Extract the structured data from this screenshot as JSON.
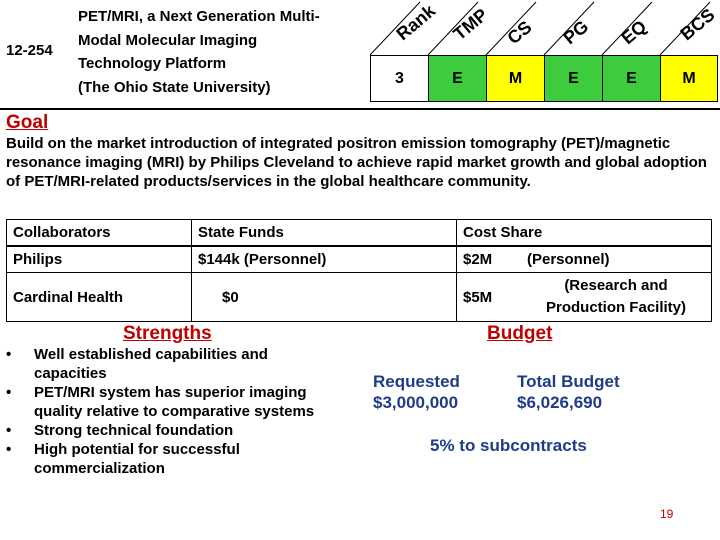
{
  "header": {
    "id": "12-254",
    "title_lines": [
      "PET/MRI, a Next Generation Multi-",
      "Modal Molecular Imaging",
      "Technology Platform",
      "(The Ohio State University)"
    ],
    "columns": [
      "Rank",
      "TMP",
      "CS",
      "PG",
      "EQ",
      "BCS"
    ],
    "ratings": [
      "3",
      "E",
      "M",
      "E",
      "E",
      "M"
    ],
    "colors": {
      "rank_bg": "#ffffff",
      "green": "#3dcc3d",
      "yellow": "#ffff00"
    }
  },
  "goal": {
    "title": "Goal",
    "text": "Build on the market introduction of integrated positron emission tomography (PET)/magnetic resonance imaging (MRI) by Philips Cleveland to achieve rapid market growth and global adoption of PET/MRI-related products/services in the global healthcare community."
  },
  "collaborators_table": {
    "headers": [
      "Collaborators",
      "State Funds",
      "Cost Share"
    ],
    "rows": [
      {
        "name": "Philips",
        "state_funds": "$144k  (Personnel)",
        "cost_share": "$2M",
        "cost_note": "(Personnel)"
      },
      {
        "name": "Cardinal Health",
        "state_funds": "$0",
        "cost_share": "$5M",
        "cost_note": "(Research and Production Facility)"
      }
    ]
  },
  "strengths": {
    "title": "Strengths",
    "items": [
      "Well established capabilities and capacities",
      "PET/MRI system has superior imaging quality relative to comparative systems",
      "Strong technical foundation",
      "High potential for successful commercialization"
    ]
  },
  "budget": {
    "title": "Budget",
    "requested_label": "Requested",
    "requested_value": "$3,000,000",
    "total_label": "Total Budget",
    "total_value": "$6,026,690",
    "subcontracts": "5% to subcontracts"
  },
  "page_number": "19"
}
